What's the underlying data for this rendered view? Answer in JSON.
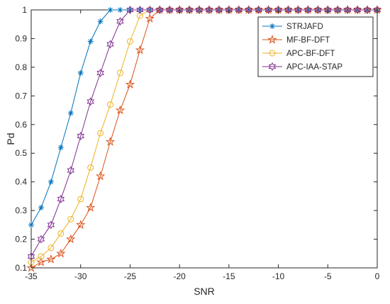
{
  "chart_data": {
    "type": "line",
    "title": "",
    "xlabel": "SNR",
    "ylabel": "Pd",
    "xlim": [
      -35,
      0
    ],
    "ylim": [
      0.1,
      1
    ],
    "xticks": [
      -35,
      -30,
      -25,
      -20,
      -15,
      -10,
      -5,
      0
    ],
    "yticks": [
      0.1,
      0.2,
      0.3,
      0.4,
      0.5,
      0.6,
      0.7,
      0.8,
      0.9,
      1
    ],
    "grid": false,
    "legend_position": "top-right",
    "x": [
      -35,
      -34,
      -33,
      -32,
      -31,
      -30,
      -29,
      -28,
      -27,
      -26,
      -25,
      -24,
      -23,
      -22,
      -21,
      -20,
      -19,
      -18,
      -17,
      -16,
      -15,
      -14,
      -13,
      -12,
      -11,
      -10,
      -9,
      -8,
      -7,
      -6,
      -5,
      -4,
      -3,
      -2,
      -1,
      0
    ],
    "series": [
      {
        "name": "STRJAFD",
        "color": "#0072BD",
        "marker": "asterisk",
        "values": [
          0.25,
          0.31,
          0.4,
          0.52,
          0.64,
          0.78,
          0.89,
          0.96,
          1,
          1,
          1,
          1,
          1,
          1,
          1,
          1,
          1,
          1,
          1,
          1,
          1,
          1,
          1,
          1,
          1,
          1,
          1,
          1,
          1,
          1,
          1,
          1,
          1,
          1,
          1,
          1
        ]
      },
      {
        "name": "MF-BF-DFT",
        "color": "#D95319",
        "marker": "pentagram",
        "values": [
          0.1,
          0.12,
          0.13,
          0.15,
          0.2,
          0.25,
          0.31,
          0.42,
          0.54,
          0.65,
          0.74,
          0.86,
          0.97,
          1,
          1,
          1,
          1,
          1,
          1,
          1,
          1,
          1,
          1,
          1,
          1,
          1,
          1,
          1,
          1,
          1,
          1,
          1,
          1,
          1,
          1,
          1
        ]
      },
      {
        "name": "APC-BF-DFT",
        "color": "#EDB120",
        "marker": "circle",
        "values": [
          0.12,
          0.14,
          0.17,
          0.22,
          0.27,
          0.34,
          0.45,
          0.57,
          0.67,
          0.78,
          0.89,
          0.98,
          1,
          1,
          1,
          1,
          1,
          1,
          1,
          1,
          1,
          1,
          1,
          1,
          1,
          1,
          1,
          1,
          1,
          1,
          1,
          1,
          1,
          1,
          1,
          1
        ]
      },
      {
        "name": "APC-IAA-STAP",
        "color": "#7E2F8E",
        "marker": "hexagram",
        "values": [
          0.14,
          0.2,
          0.25,
          0.34,
          0.44,
          0.56,
          0.68,
          0.78,
          0.88,
          0.96,
          1,
          1,
          1,
          1,
          1,
          1,
          1,
          1,
          1,
          1,
          1,
          1,
          1,
          1,
          1,
          1,
          1,
          1,
          1,
          1,
          1,
          1,
          1,
          1,
          1,
          1
        ]
      }
    ]
  }
}
